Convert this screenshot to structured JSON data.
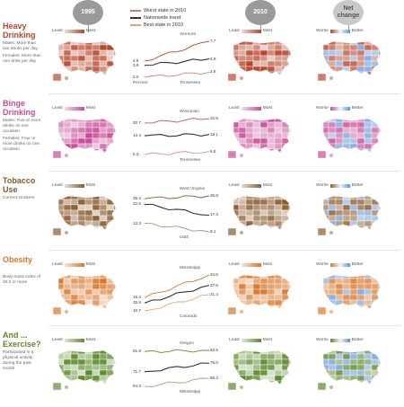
{
  "header": {
    "year_start": "1995",
    "year_end": "2010",
    "net_change": "Net change"
  },
  "legend": {
    "worst": "Worst state in 2010",
    "nationwide": "Nationwide trend",
    "best": "Best state in 2010"
  },
  "colors": {
    "worst_line": "#e0776c",
    "nationwide_line": "#333333",
    "best_line": "#e8a07f"
  },
  "scale_labels": {
    "least": "Least",
    "most": "Most",
    "worse": "Worse",
    "better": "Better",
    "none": "None"
  },
  "rows": [
    {
      "title": "Heavy Drinking",
      "color": "#b7452a",
      "desc": [
        "Males: More than two drinks per day",
        "Females: More than one drink per day"
      ],
      "worst_state": "Vermont",
      "best_state": "Tennessee",
      "left_label": "Percent",
      "left_values": [
        "4.6",
        "3.9",
        "2.0"
      ],
      "right_values": [
        "7.7",
        "4.9",
        "2.8"
      ]
    },
    {
      "title": "Binge Drinking",
      "color": "#c74b97",
      "desc": [
        "Males: Five or more drinks on one occasion",
        "Females: Four or more drinks on one occasion"
      ],
      "worst_state": "Wisconsin",
      "best_state": "Tennessee",
      "left_label": "",
      "left_values": [
        "20.7",
        "14.4",
        "5.3"
      ],
      "right_values": [
        "22.8",
        "15.1",
        "6.8"
      ]
    },
    {
      "title": "Tobacco Use",
      "color": "#8a5a2b",
      "desc": [
        "Current smokers"
      ],
      "worst_state": "West Virginia",
      "best_state": "Utah",
      "left_label": "",
      "left_values": [
        "25.4",
        "22.6",
        "13.3"
      ],
      "right_values": [
        "26.8",
        "17.3",
        "9.1"
      ]
    },
    {
      "title": "Obesity",
      "color": "#d8772b",
      "desc": [
        "Body-mass index of 30.0 or more"
      ],
      "worst_state": "Mississippi",
      "best_state": "Colorado",
      "left_label": "",
      "left_values": [
        "19.4",
        "15.9",
        "10.7"
      ],
      "right_values": [
        "34.5",
        "27.6",
        "21.4"
      ]
    },
    {
      "title": "And ... Exercise?",
      "color": "#5c8b2c",
      "desc": [
        "Participated in a physical activity during the past month"
      ],
      "worst_state": "Oregon",
      "best_state": "Mississippi",
      "left_label": "",
      "left_values": [
        "81.9",
        "71.7",
        "64.3"
      ],
      "right_values": [
        "82.5",
        "76.0",
        "68.3"
      ]
    }
  ]
}
